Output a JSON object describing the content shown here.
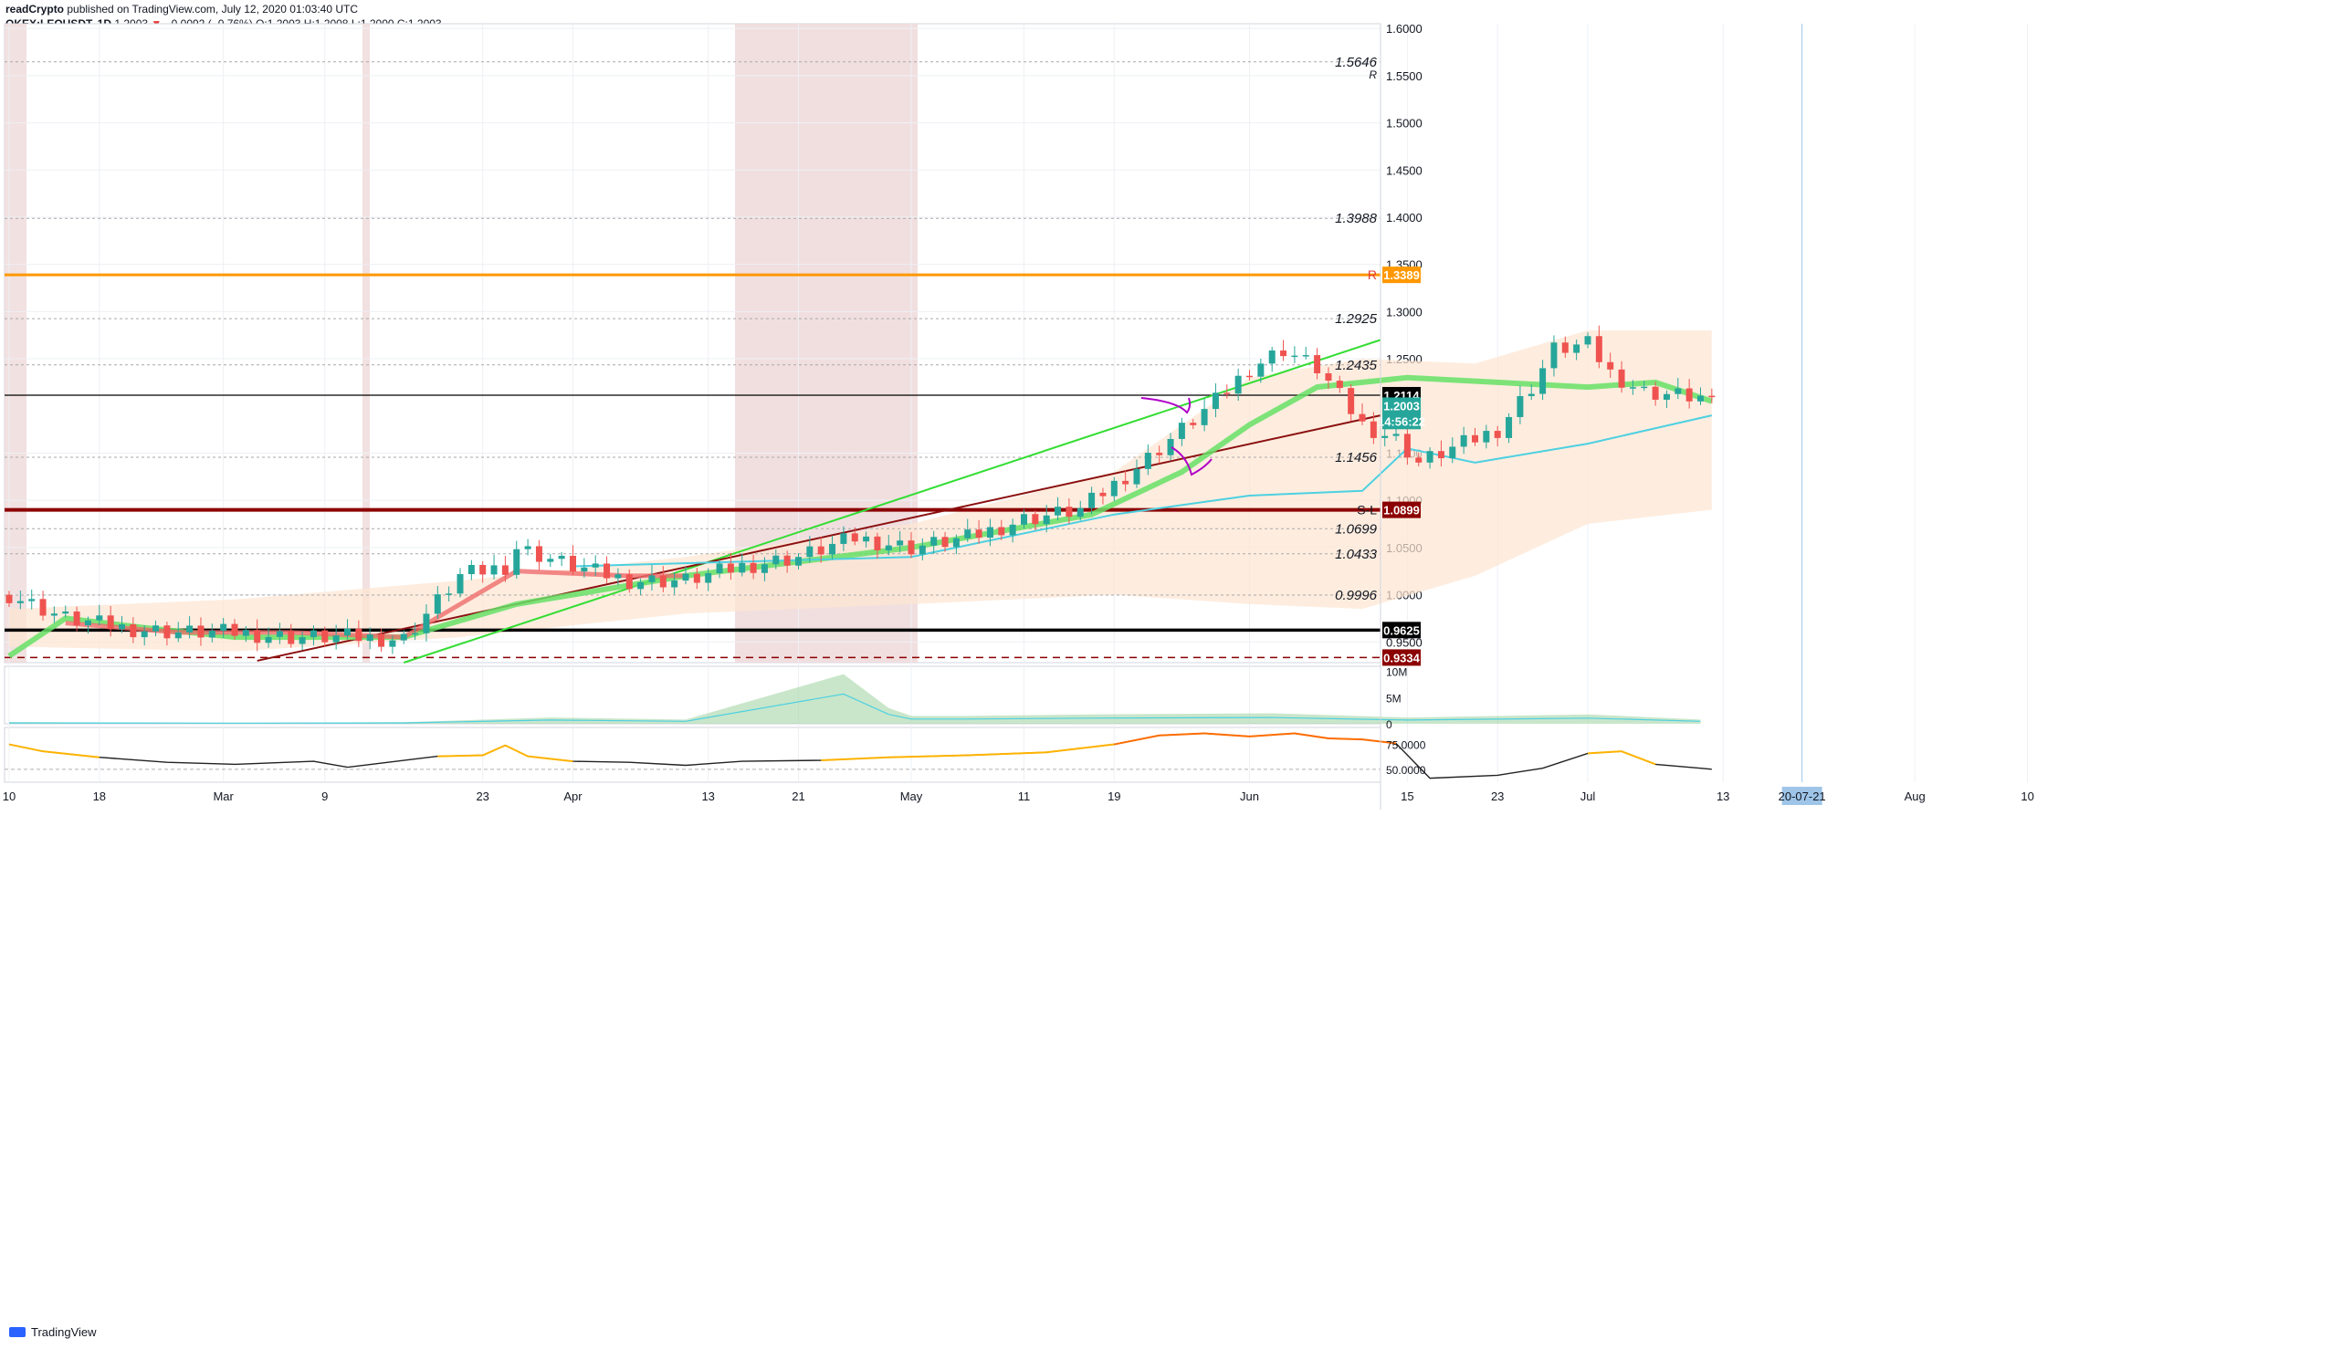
{
  "header": {
    "line1_user": "readCrypto",
    "line1_rest": "published on TradingView.com, July 12, 2020 01:03:40 UTC",
    "symbol": "OKEX:LEOUSDT, 1D",
    "last": "1.2003",
    "change": "−0.0092 (−0.76%)",
    "o": "O:1.2003",
    "h": "H:1.2008",
    "l": "L:1.2000",
    "c": "C:1.2003"
  },
  "footer": {
    "brand": "TradingView",
    "logo_icon": "tradingview-logo-icon"
  },
  "colors": {
    "up": "#26a69a",
    "down": "#ef5350",
    "orange": "#ff9800",
    "darkred": "#8b0000",
    "green": "#55e055",
    "cyan": "#4dd0e1",
    "bg_band": "#fde6d2",
    "shade": "#efd9da"
  },
  "chart_data": [
    {
      "type": "line",
      "title": "OKEX:LEOUSDT, 1D",
      "ylim": [
        0.928,
        1.605
      ],
      "y_ticks": [
        "1.6000",
        "1.5500",
        "1.5000",
        "1.4500",
        "1.4000",
        "1.3500",
        "1.3000",
        "1.2500",
        "1.1500",
        "1.1000",
        "1.0500",
        "1.0000",
        "0.9500"
      ],
      "x_ticks": [
        "10",
        "18",
        "Mar",
        "9",
        "23",
        "Apr",
        "13",
        "21",
        "May",
        "11",
        "19",
        "Jun",
        "15",
        "23",
        "Jul",
        "13",
        "20-07-21",
        "Aug",
        "10"
      ],
      "x_tick_days": [
        0,
        8,
        19,
        28,
        42,
        50,
        62,
        70,
        80,
        90,
        98,
        110,
        124,
        132,
        140,
        152,
        159,
        169,
        179
      ],
      "x_highlight": "20-07-21",
      "series": [
        {
          "name": "close",
          "x_days": [
            0,
            5,
            10,
            15,
            20,
            25,
            30,
            35,
            40,
            44,
            45,
            50,
            55,
            60,
            65,
            70,
            75,
            80,
            85,
            90,
            95,
            100,
            104,
            107,
            110,
            113,
            116,
            120,
            123,
            125,
            127,
            130,
            132,
            135,
            137,
            140,
            142,
            145,
            150,
            151
          ],
          "values": [
            1.0,
            0.975,
            0.965,
            0.96,
            0.96,
            0.955,
            0.955,
            0.953,
            1.02,
            1.03,
            1.05,
            1.03,
            1.015,
            1.015,
            1.03,
            1.04,
            1.06,
            1.05,
            1.06,
            1.08,
            1.09,
            1.135,
            1.175,
            1.205,
            1.24,
            1.26,
            1.24,
            1.18,
            1.165,
            1.14,
            1.15,
            1.165,
            1.175,
            1.22,
            1.26,
            1.265,
            1.235,
            1.215,
            1.209,
            1.2003
          ]
        }
      ],
      "annotations": [
        {
          "text": "1.5646",
          "value": 1.5646,
          "mark": "R"
        },
        {
          "text": "1.3988",
          "value": 1.3988
        },
        {
          "text": "1.2925",
          "value": 1.2925
        },
        {
          "text": "1.2435",
          "value": 1.2435
        },
        {
          "text": "1.1456",
          "value": 1.1456
        },
        {
          "text": "1.0699",
          "value": 1.0699
        },
        {
          "text": "1.0433",
          "value": 1.0433
        },
        {
          "text": "0.9996",
          "value": 0.9996
        }
      ],
      "price_labels": [
        {
          "text": "1.3389",
          "value": 1.3389,
          "color": "#ff9800",
          "mark": "R"
        },
        {
          "text": "1.2114",
          "value": 1.2114,
          "color": "#000000"
        },
        {
          "text": "1.2003",
          "value": 1.2003,
          "color": "#26a69a"
        },
        {
          "text": "14:56:22",
          "value": 1.184,
          "color": "#26a69a"
        },
        {
          "text": "1.0899",
          "value": 1.0899,
          "color": "#8b0000",
          "mark": "S-L"
        },
        {
          "text": "0.9625",
          "value": 0.9625,
          "color": "#000000"
        },
        {
          "text": "0.9334",
          "value": 0.9334,
          "color": "#8b0000"
        }
      ]
    },
    {
      "type": "area",
      "title": "Volume",
      "ylim": [
        0,
        11000000
      ],
      "y_ticks": [
        "10M",
        "5M",
        "0"
      ],
      "series": [
        {
          "name": "volume",
          "x_days": [
            0,
            20,
            35,
            48,
            60,
            74,
            78,
            80,
            85,
            96,
            112,
            124,
            140,
            150
          ],
          "values": [
            300000,
            200000,
            300000,
            1200000,
            800000,
            9500000,
            3000000,
            1500000,
            1500000,
            1800000,
            2000000,
            1200000,
            1800000,
            800000
          ]
        }
      ]
    },
    {
      "type": "line",
      "title": "Oscillator",
      "ylim": [
        37,
        92
      ],
      "y_ticks": [
        "75.0000",
        "50.0000"
      ],
      "series": [
        {
          "name": "oscillator",
          "x_days": [
            0,
            3,
            8,
            14,
            20,
            27,
            30,
            38,
            42,
            44,
            46,
            50,
            55,
            60,
            65,
            72,
            78,
            85,
            92,
            98,
            102,
            106,
            110,
            114,
            117,
            120,
            123,
            126,
            132,
            136,
            140,
            143,
            146,
            150,
            151
          ],
          "values": [
            75,
            68,
            62,
            57,
            55,
            58,
            52,
            63,
            64,
            74,
            63,
            58,
            57,
            54,
            58,
            59,
            62,
            64,
            67,
            75,
            84,
            86,
            83,
            86,
            81,
            80,
            76,
            41,
            44,
            51,
            66,
            68,
            55,
            51,
            50
          ]
        }
      ]
    }
  ]
}
